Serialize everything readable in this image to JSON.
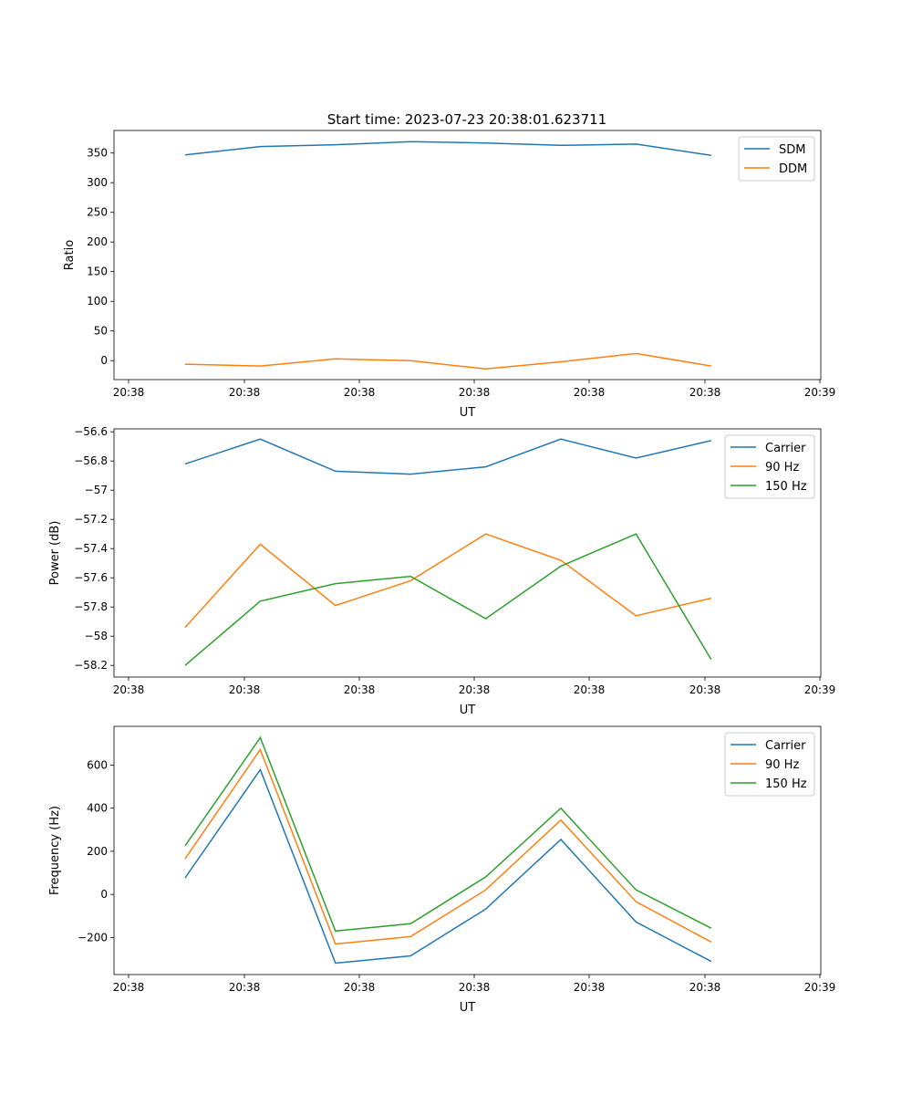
{
  "title": "Start time: 2023-07-23 20:38:01.623711",
  "colors": {
    "c0": "#1f77b4",
    "c1": "#ff7f0e",
    "c2": "#2ca02c"
  },
  "chart_data": [
    {
      "type": "line",
      "xlabel": "UT",
      "ylabel": "Ratio",
      "xtick_labels": [
        "20:38",
        "20:38",
        "20:38",
        "20:38",
        "20:38",
        "20:38",
        "20:39"
      ],
      "yticks": [
        0,
        50,
        100,
        150,
        200,
        250,
        300,
        350
      ],
      "ylim": [
        -32,
        388
      ],
      "x": [
        1,
        2,
        3,
        4,
        5,
        6,
        7,
        8
      ],
      "legend": "top-right",
      "series": [
        {
          "name": "SDM",
          "color": "#1f77b4",
          "values": [
            347,
            361,
            364,
            369,
            367,
            363,
            365,
            346
          ]
        },
        {
          "name": "DDM",
          "color": "#ff7f0e",
          "values": [
            -6,
            -9,
            3,
            0,
            -14,
            -2,
            12,
            -9
          ]
        }
      ]
    },
    {
      "type": "line",
      "xlabel": "UT",
      "ylabel": "Power (dB)",
      "xtick_labels": [
        "20:38",
        "20:38",
        "20:38",
        "20:38",
        "20:38",
        "20:38",
        "20:39"
      ],
      "yticks": [
        -58.2,
        -58.0,
        -57.8,
        -57.6,
        -57.4,
        -57.2,
        -57.0,
        -56.8,
        -56.6
      ],
      "ylim": [
        -58.28,
        -56.58
      ],
      "x": [
        1,
        2,
        3,
        4,
        5,
        6,
        7,
        8
      ],
      "legend": "top-right",
      "series": [
        {
          "name": "Carrier",
          "color": "#1f77b4",
          "values": [
            -56.82,
            -56.65,
            -56.87,
            -56.89,
            -56.84,
            -56.65,
            -56.78,
            -56.66
          ]
        },
        {
          "name": "90 Hz",
          "color": "#ff7f0e",
          "values": [
            -57.94,
            -57.37,
            -57.79,
            -57.62,
            -57.3,
            -57.48,
            -57.86,
            -57.74
          ]
        },
        {
          "name": "150 Hz",
          "color": "#2ca02c",
          "values": [
            -58.2,
            -57.76,
            -57.64,
            -57.59,
            -57.88,
            -57.52,
            -57.3,
            -58.16
          ]
        }
      ]
    },
    {
      "type": "line",
      "xlabel": "UT",
      "ylabel": "Frequency (Hz)",
      "xtick_labels": [
        "20:38",
        "20:38",
        "20:38",
        "20:38",
        "20:38",
        "20:38",
        "20:39"
      ],
      "yticks": [
        -200,
        0,
        200,
        400,
        600
      ],
      "ylim": [
        -372,
        780
      ],
      "x": [
        1,
        2,
        3,
        4,
        5,
        6,
        7,
        8
      ],
      "legend": "top-right",
      "series": [
        {
          "name": "Carrier",
          "color": "#1f77b4",
          "values": [
            77,
            579,
            -319,
            -285,
            -68,
            255,
            -128,
            -311
          ]
        },
        {
          "name": "90 Hz",
          "color": "#ff7f0e",
          "values": [
            166,
            672,
            -230,
            -196,
            21,
            345,
            -34,
            -221
          ]
        },
        {
          "name": "150 Hz",
          "color": "#2ca02c",
          "values": [
            226,
            728,
            -170,
            -136,
            81,
            400,
            21,
            -157
          ]
        }
      ]
    }
  ]
}
